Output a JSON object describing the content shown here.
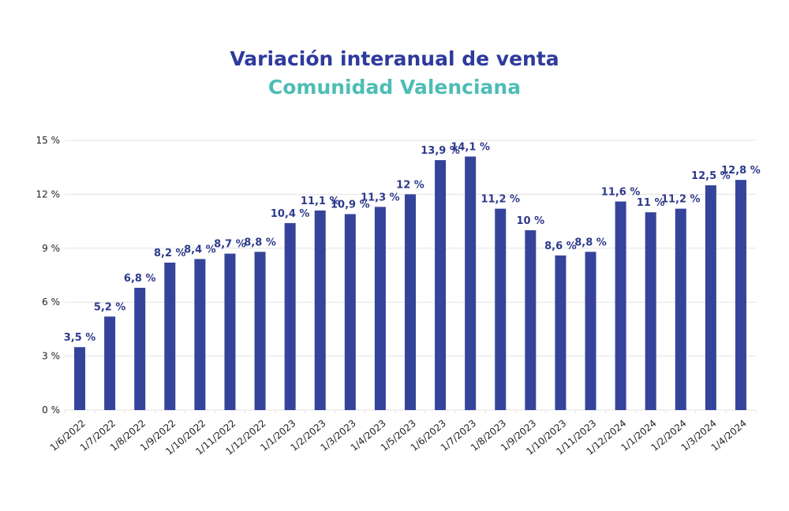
{
  "chart_data": {
    "type": "bar",
    "title": "Variación interanual de venta",
    "subtitle": "Comunidad Valenciana",
    "xlabel": "",
    "ylabel": "",
    "ylim": [
      0,
      15
    ],
    "yticks": [
      0,
      3,
      6,
      9,
      12,
      15
    ],
    "ytick_labels": [
      "0 %",
      "3 %",
      "6 %",
      "9 %",
      "12 %",
      "15 %"
    ],
    "grid": true,
    "categories": [
      "1/6/2022",
      "1/7/2022",
      "1/8/2022",
      "1/9/2022",
      "1/10/2022",
      "1/11/2022",
      "1/12/2022",
      "1/1/2023",
      "1/2/2023",
      "1/3/2023",
      "1/4/2023",
      "1/5/2023",
      "1/6/2023",
      "1/7/2023",
      "1/8/2023",
      "1/9/2023",
      "1/10/2023",
      "1/11/2023",
      "1/12/2024",
      "1/1/2024",
      "1/2/2024",
      "1/3/2024",
      "1/4/2024"
    ],
    "values": [
      3.5,
      5.2,
      6.8,
      8.2,
      8.4,
      8.7,
      8.8,
      10.4,
      11.1,
      10.9,
      11.3,
      12,
      13.9,
      14.1,
      11.2,
      10,
      8.6,
      8.8,
      11.6,
      11,
      11.2,
      12.5,
      12.8
    ],
    "data_labels": [
      "3,5 %",
      "5,2 %",
      "6,8 %",
      "8,2 %",
      "8,4 %",
      "8,7 %",
      "8,8 %",
      "10,4 %",
      "11,1 %",
      "10,9 %",
      "11,3 %",
      "12 %",
      "13,9 %",
      "14,1 %",
      "11,2 %",
      "10 %",
      "8,6 %",
      "8,8 %",
      "11,6 %",
      "11 %",
      "11,2 %",
      "12,5 %",
      "12,8 %"
    ],
    "colors": {
      "bar": "#35449a",
      "label": "#2e3a8c",
      "title": "#2e3a9c",
      "subtitle": "#4dbdb5",
      "grid": "#e3e3e3"
    }
  }
}
